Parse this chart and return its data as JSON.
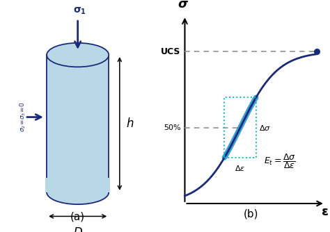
{
  "cylinder_color": "#b8d8e8",
  "cylinder_edge_color": "#1a2a7a",
  "arrow_color": "#1a2a7a",
  "curve_color": "#1a2a7a",
  "highlight_color": "#1a90cc",
  "background": "#ffffff",
  "label_a": "(a)",
  "label_b": "(b)"
}
